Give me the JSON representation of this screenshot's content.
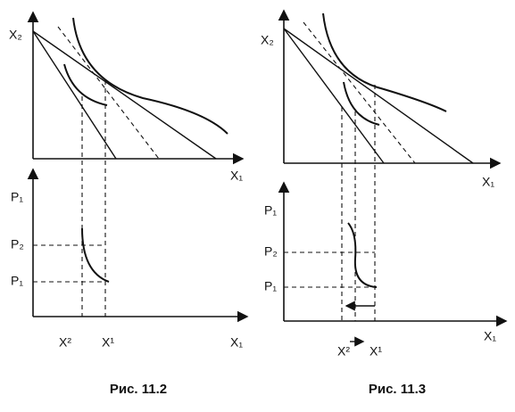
{
  "figures": [
    {
      "caption": "Рис. 11.2",
      "top": {
        "y_label": "X₂",
        "x_label": "X₁"
      },
      "bottom": {
        "y_label": "P₁",
        "x_label": "X₁",
        "price_labels": [
          "P₂",
          "P₁"
        ],
        "quantity_labels": [
          "X²",
          "X¹"
        ]
      }
    },
    {
      "caption": "Рис. 11.3",
      "top": {
        "y_label": "X₂",
        "x_label": "X₁"
      },
      "bottom": {
        "y_label": "P₁",
        "x_label": "X₁",
        "price_labels": [
          "P₂",
          "P₁"
        ],
        "quantity_labels": [
          "X²",
          "X¹"
        ]
      }
    }
  ]
}
